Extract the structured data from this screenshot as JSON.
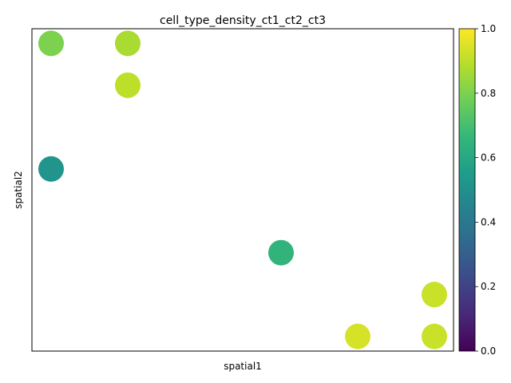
{
  "chart_data": {
    "type": "scatter",
    "title": "cell_type_density_ct1_ct2_ct3",
    "xlabel": "spatial1",
    "ylabel": "spatial2",
    "x_ticks_shown": false,
    "y_ticks_shown": false,
    "grid": false,
    "xlim": [
      -0.25,
      5.25
    ],
    "ylim": [
      -0.35,
      7.35
    ],
    "points": [
      {
        "x": 0,
        "y": 7,
        "value": 0.8
      },
      {
        "x": 1,
        "y": 7,
        "value": 0.87
      },
      {
        "x": 1,
        "y": 6,
        "value": 0.9
      },
      {
        "x": 0,
        "y": 4,
        "value": 0.52
      },
      {
        "x": 3,
        "y": 2,
        "value": 0.65
      },
      {
        "x": 5,
        "y": 1,
        "value": 0.92
      },
      {
        "x": 4,
        "y": 0,
        "value": 0.94
      },
      {
        "x": 5,
        "y": 0,
        "value": 0.92
      }
    ],
    "colorbar": {
      "colormap": "viridis",
      "min": 0.0,
      "max": 1.0,
      "ticks": [
        "0.0",
        "0.2",
        "0.4",
        "0.6",
        "0.8",
        "1.0"
      ],
      "tick_values": [
        0.0,
        0.2,
        0.4,
        0.6,
        0.8,
        1.0
      ],
      "colors": [
        "#440154",
        "#482878",
        "#3e4989",
        "#31688e",
        "#26828e",
        "#1f9e89",
        "#35b779",
        "#6ece58",
        "#b5de2b",
        "#fde725"
      ]
    }
  }
}
